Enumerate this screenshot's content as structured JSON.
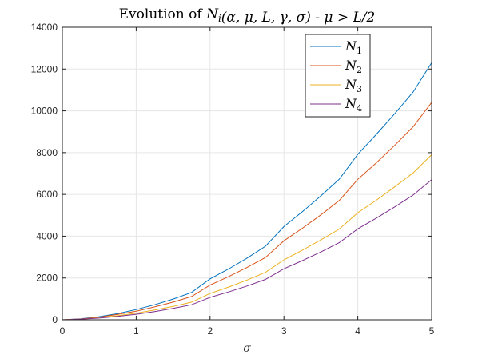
{
  "chart_data": {
    "type": "line",
    "title": "Evolution of N_i(α, μ, L, γ, σ) - μ > L/2",
    "xlabel": "σ",
    "ylabel": "",
    "xlim": [
      0,
      5
    ],
    "ylim": [
      0,
      14000
    ],
    "xticks": [
      0,
      1,
      2,
      3,
      4,
      5
    ],
    "yticks": [
      0,
      2000,
      4000,
      6000,
      8000,
      10000,
      12000,
      14000
    ],
    "grid": true,
    "legend_position": "top-right",
    "x": [
      0,
      0.25,
      0.5,
      0.75,
      1,
      1.25,
      1.5,
      1.75,
      2,
      2.25,
      2.5,
      2.75,
      3,
      3.25,
      3.5,
      3.75,
      4,
      4.25,
      4.5,
      4.75,
      5
    ],
    "series": [
      {
        "name": "N1",
        "label_main": "N",
        "label_sub": "1",
        "color": "#0072BD",
        "values": [
          0,
          45,
          150,
          300,
          490,
          720,
          990,
          1310,
          1960,
          2430,
          2950,
          3520,
          4460,
          5170,
          5930,
          6730,
          7920,
          8870,
          9860,
          10900,
          12300
        ]
      },
      {
        "name": "N2",
        "label_main": "N",
        "label_sub": "2",
        "color": "#D95319",
        "values": [
          0,
          38,
          125,
          255,
          415,
          615,
          845,
          1115,
          1660,
          2060,
          2500,
          2980,
          3780,
          4380,
          5020,
          5710,
          6720,
          7510,
          8350,
          9240,
          10400
        ]
      },
      {
        "name": "N3",
        "label_main": "N",
        "label_sub": "3",
        "color": "#EDB120",
        "values": [
          0,
          29,
          95,
          195,
          315,
          465,
          640,
          845,
          1260,
          1565,
          1900,
          2270,
          2870,
          3330,
          3820,
          4340,
          5120,
          5720,
          6360,
          7030,
          7900
        ]
      },
      {
        "name": "N4",
        "label_main": "N",
        "label_sub": "4",
        "color": "#7E2F8E",
        "values": [
          0,
          25,
          80,
          165,
          265,
          395,
          545,
          720,
          1070,
          1330,
          1615,
          1930,
          2440,
          2830,
          3245,
          3690,
          4350,
          4860,
          5400,
          5970,
          6700
        ]
      }
    ]
  }
}
